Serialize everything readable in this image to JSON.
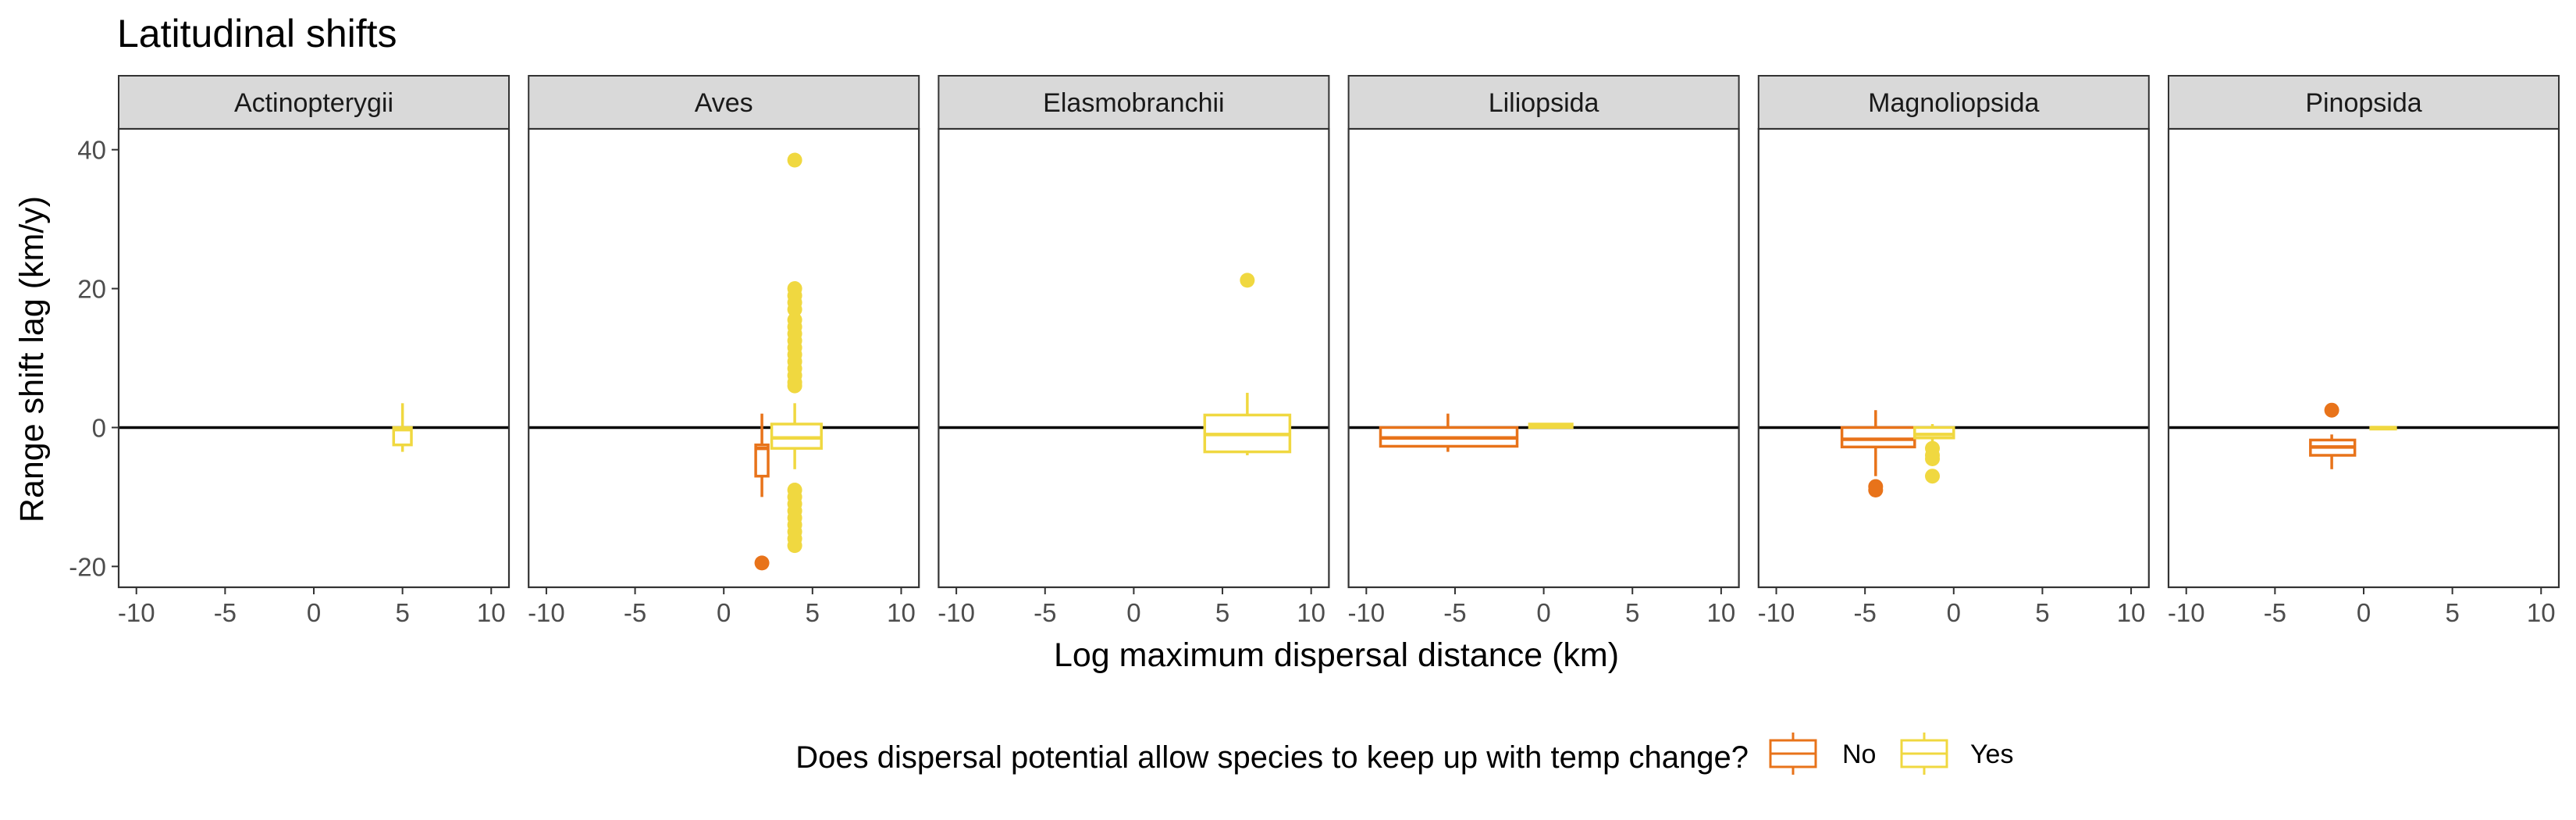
{
  "chart_data": {
    "type": "box",
    "title": "Latitudinal shifts",
    "xlabel": "Log maximum dispersal distance (km)",
    "ylabel": "Range shift lag (km/y)",
    "xlim": [
      -11,
      11
    ],
    "ylim": [
      -23,
      43
    ],
    "x_ticks": [
      -10,
      -5,
      0,
      5,
      10
    ],
    "x_tick_labels": [
      "-10",
      "-5",
      "0",
      "5",
      "10"
    ],
    "y_ticks": [
      -20,
      0,
      20,
      40
    ],
    "y_tick_labels": [
      "-20",
      "0",
      "20",
      "40"
    ],
    "reference_line_y": 0,
    "grid": false,
    "legend": {
      "title": "Does dispersal potential allow species to keep up with temp change?",
      "position": "bottom",
      "entries": [
        {
          "label": "No",
          "color": "#E8731A"
        },
        {
          "label": "Yes",
          "color": "#F0D840"
        }
      ]
    },
    "colors": {
      "No": "#E8731A",
      "Yes": "#F0D840"
    },
    "panels": [
      {
        "label": "Actinopterygii",
        "boxes": [
          {
            "group": "Yes",
            "xmin": 4.5,
            "xmax": 5.5,
            "whisker_low": -3.5,
            "q1": -2.5,
            "median": -0.3,
            "q3": 0,
            "whisker_high": 3.5,
            "outliers": []
          }
        ]
      },
      {
        "label": "Aves",
        "boxes": [
          {
            "group": "No",
            "xmin": 1.8,
            "xmax": 2.5,
            "whisker_low": -10,
            "q1": -7,
            "median": -3,
            "q3": -2.5,
            "whisker_high": 2,
            "outliers": [
              -19.5
            ]
          },
          {
            "group": "Yes",
            "xmin": 2.7,
            "xmax": 5.5,
            "whisker_low": -6,
            "q1": -3,
            "median": -1.5,
            "q3": 0.5,
            "whisker_high": 3.5,
            "outlier_x": 4,
            "outliers": [
              38.5,
              20,
              19,
              18,
              17,
              15.5,
              14.5,
              13.5,
              12.5,
              11.5,
              10.5,
              9.5,
              8.5,
              7.5,
              6.5,
              6,
              -9,
              -10,
              -11,
              -12,
              -13,
              -14,
              -15,
              -16,
              -17
            ]
          }
        ]
      },
      {
        "label": "Elasmobranchii",
        "boxes": [
          {
            "group": "Yes",
            "xmin": 4,
            "xmax": 8.8,
            "whisker_low": -4,
            "q1": -3.5,
            "median": -1,
            "q3": 1.8,
            "whisker_high": 5,
            "outlier_x": 6.4,
            "outliers": [
              21.2
            ]
          }
        ]
      },
      {
        "label": "Liliopsida",
        "boxes": [
          {
            "group": "No",
            "xmin": -9.2,
            "xmax": -1.5,
            "whisker_low": -3.5,
            "q1": -2.7,
            "median": -1.5,
            "q3": 0,
            "whisker_high": 2,
            "outlier_x": -5.4,
            "outliers": []
          },
          {
            "group": "Yes",
            "xmin": -0.8,
            "xmax": 1.6,
            "whisker_low": 0,
            "q1": 0,
            "median": 0.3,
            "q3": 0.5,
            "whisker_high": 0.5,
            "outliers": []
          }
        ]
      },
      {
        "label": "Magnoliopsida",
        "boxes": [
          {
            "group": "No",
            "xmin": -6.3,
            "xmax": -2.2,
            "whisker_low": -7,
            "q1": -2.8,
            "median": -1.7,
            "q3": 0,
            "whisker_high": 2.5,
            "outlier_x": -4.4,
            "outliers": [
              -8.5,
              -9
            ]
          },
          {
            "group": "Yes",
            "xmin": -2.2,
            "xmax": 0,
            "whisker_low": -2,
            "q1": -1.5,
            "median": -1,
            "q3": 0,
            "whisker_high": 0.5,
            "outlier_x": -1.2,
            "outliers": [
              -3,
              -4,
              -4.5,
              -7
            ]
          }
        ]
      },
      {
        "label": "Pinopsida",
        "boxes": [
          {
            "group": "No",
            "xmin": -3,
            "xmax": -0.5,
            "whisker_low": -6,
            "q1": -4,
            "median": -2.8,
            "q3": -1.8,
            "whisker_high": -1,
            "outlier_x": -1.8,
            "outliers": [
              2.5
            ]
          },
          {
            "group": "Yes",
            "xmin": 0.4,
            "xmax": 1.8,
            "whisker_low": 0,
            "q1": 0,
            "median": 0,
            "q3": 0,
            "whisker_high": 0,
            "outliers": []
          }
        ]
      }
    ]
  }
}
